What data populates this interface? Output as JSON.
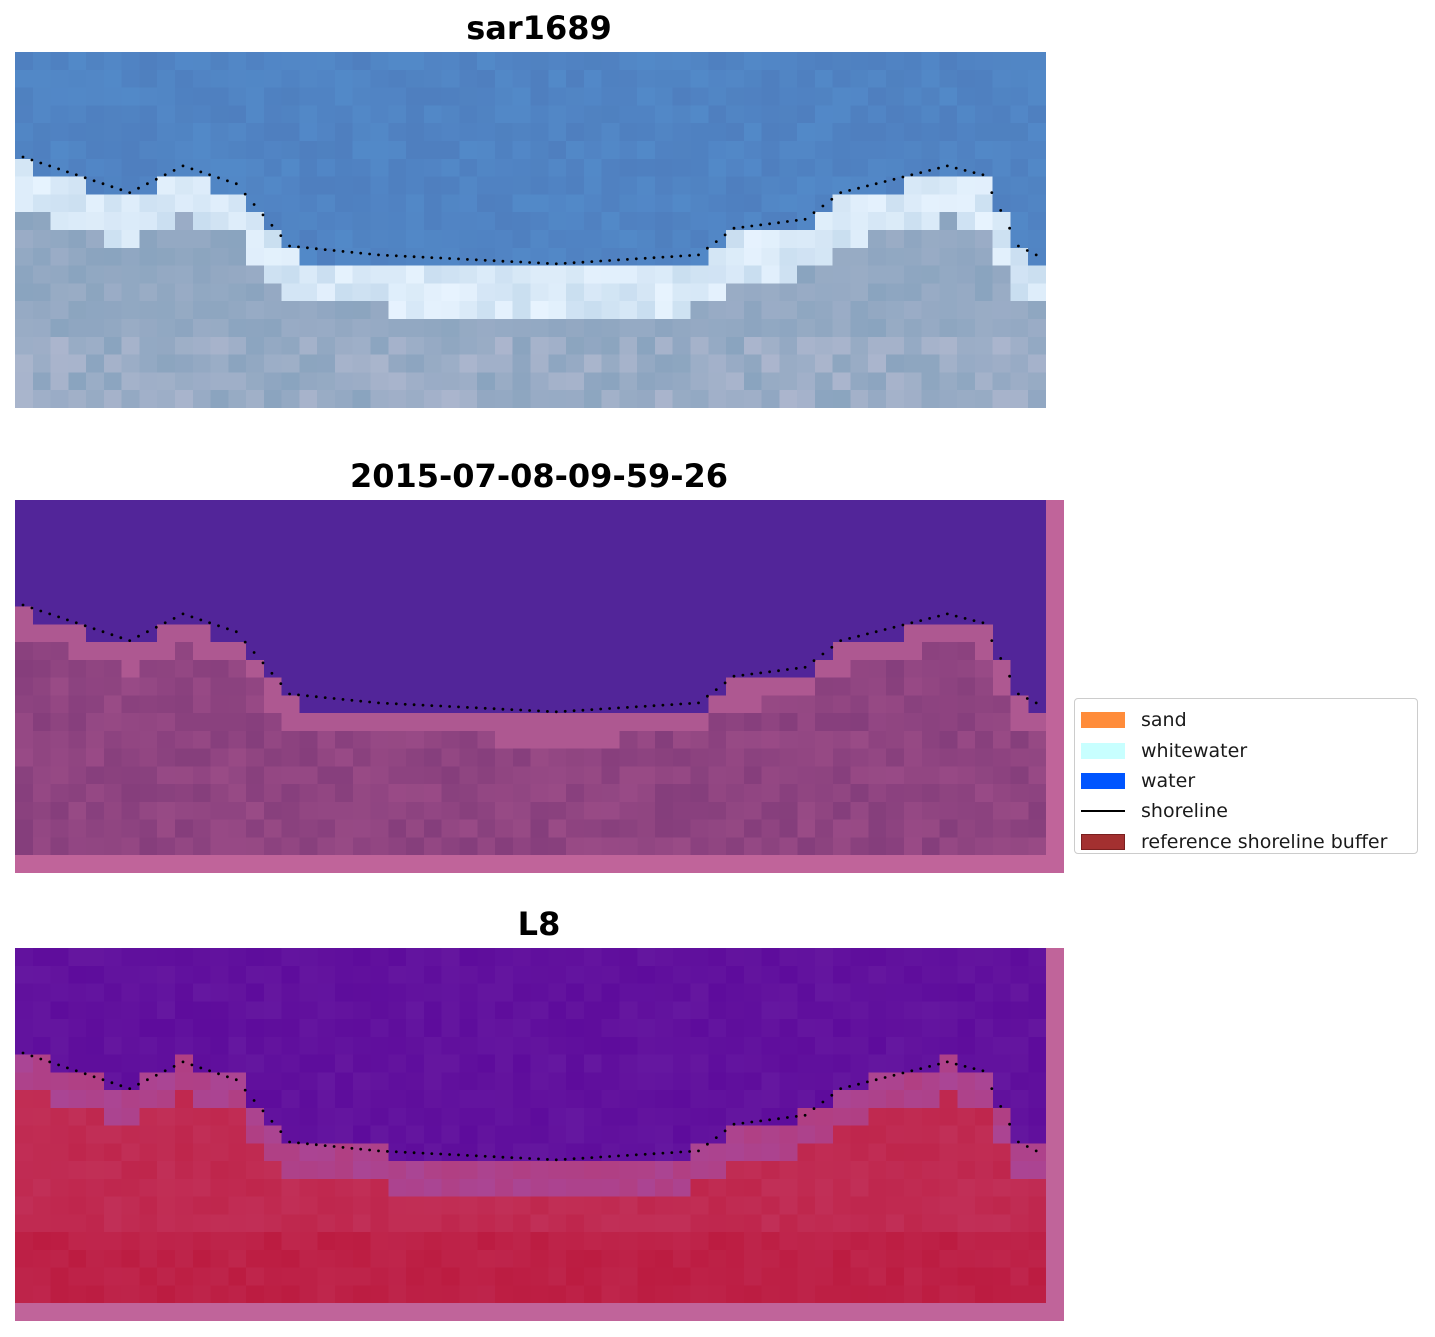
{
  "panels": [
    {
      "title": "sar1689"
    },
    {
      "title": "2015-07-08-09-59-26"
    },
    {
      "title": "L8"
    }
  ],
  "legend": {
    "items": [
      {
        "label": "sand",
        "kind": "patch",
        "color": "#ff8c3a"
      },
      {
        "label": "whitewater",
        "kind": "patch",
        "color": "#c8ffff"
      },
      {
        "label": "water",
        "kind": "patch",
        "color": "#0055ff"
      },
      {
        "label": "shoreline",
        "kind": "line",
        "color": "#000000"
      },
      {
        "label": "reference shoreline buffer",
        "kind": "patch",
        "color": "#a33030"
      }
    ]
  },
  "colors": {
    "rgb_water": "#4f7fbf",
    "rgb_surf": "#e8f4ff",
    "rgb_beach": "#8aa4bf",
    "class_water": "#522599",
    "class_land": "#853e7c",
    "class_buffer": "#c0649a",
    "mndwi_water": "#5e0c9c",
    "mndwi_land": "#c23058"
  }
}
